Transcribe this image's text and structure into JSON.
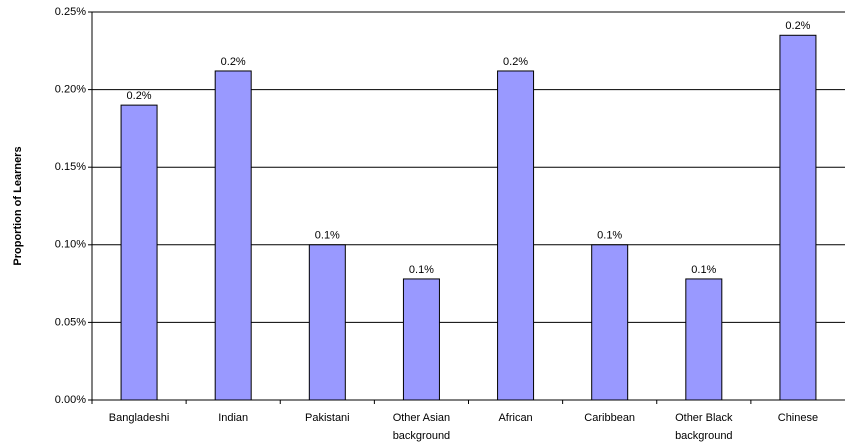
{
  "chart_data": {
    "type": "bar",
    "y_label": "Proportion of Learners",
    "categories": [
      "Bangladeshi",
      "Indian",
      "Pakistani",
      "Other Asian background",
      "African",
      "Caribbean",
      "Other Black background",
      "Chinese"
    ],
    "values": [
      0.19,
      0.212,
      0.1,
      0.078,
      0.212,
      0.1,
      0.078,
      0.235
    ],
    "value_labels": [
      "0.2%",
      "0.2%",
      "0.1%",
      "0.1%",
      "0.2%",
      "0.1%",
      "0.1%",
      "0.2%"
    ],
    "color": "#9999ff",
    "ylim": [
      0,
      0.25
    ],
    "yticks": [
      {
        "value": 0,
        "label": "0.00%"
      },
      {
        "value": 0.05,
        "label": "0.05%"
      },
      {
        "value": 0.1,
        "label": "0.10%"
      },
      {
        "value": 0.15,
        "label": "0.15%"
      },
      {
        "value": 0.2,
        "label": "0.20%"
      },
      {
        "value": 0.25,
        "label": "0.25%"
      }
    ],
    "grid": true
  }
}
